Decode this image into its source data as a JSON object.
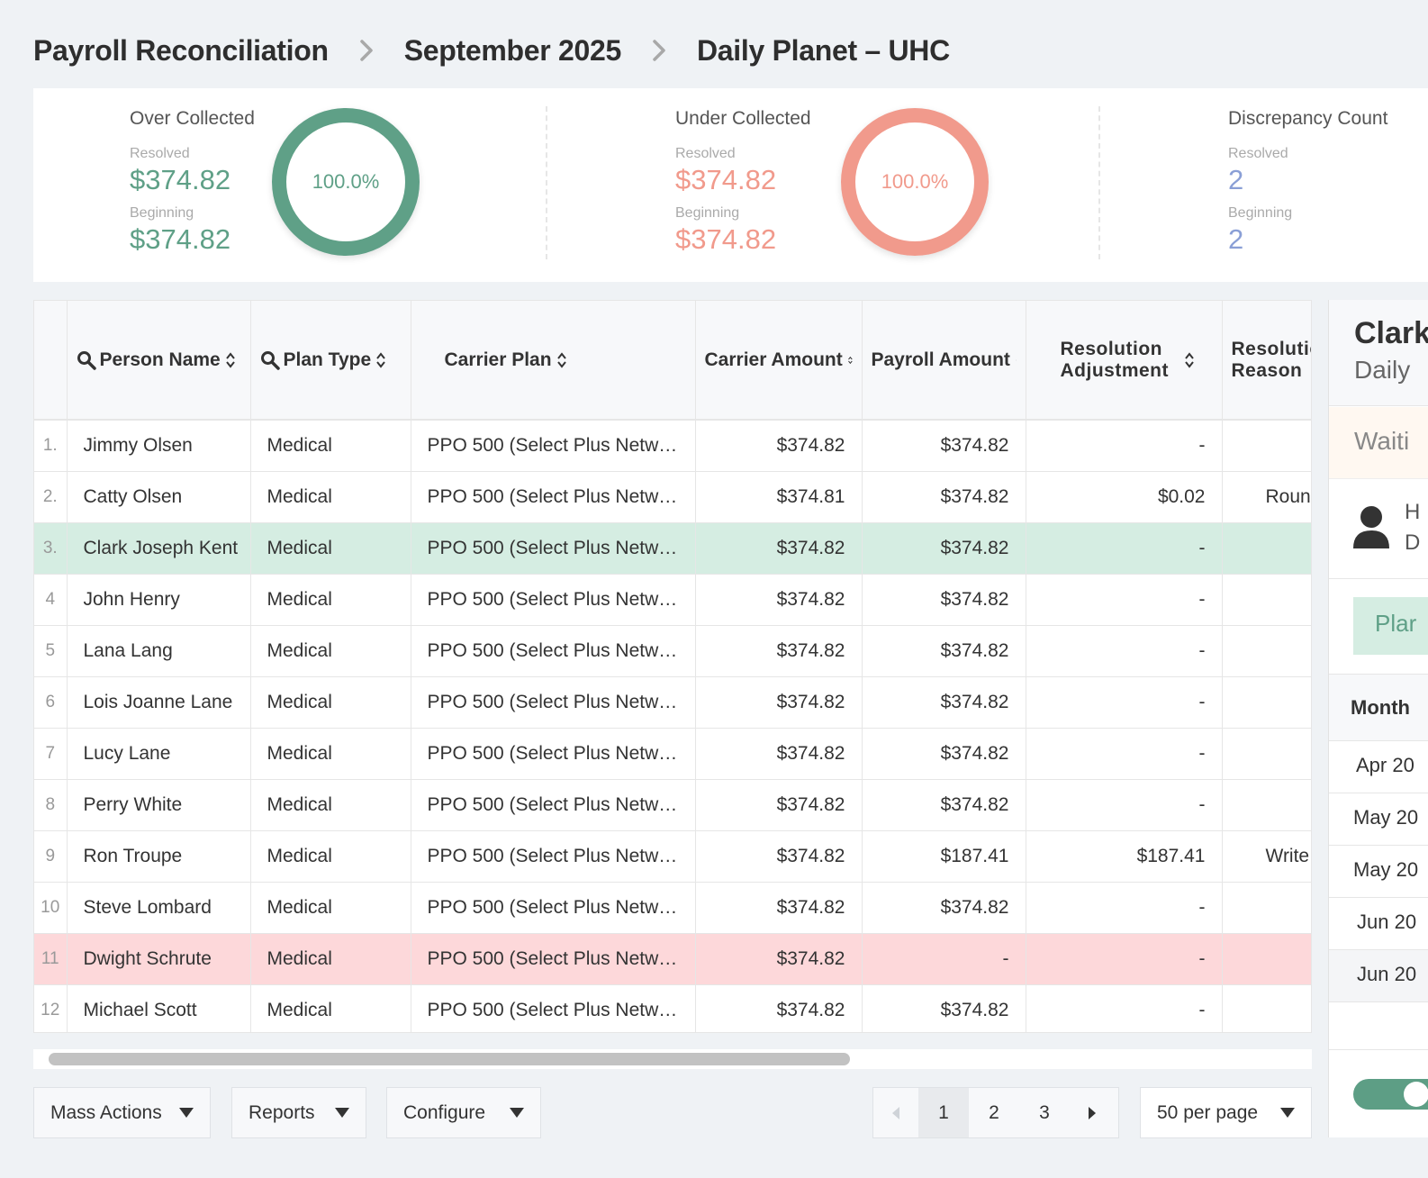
{
  "breadcrumb": [
    "Payroll Reconciliation",
    "September 2025",
    "Daily Planet – UHC"
  ],
  "summary": {
    "over": {
      "title": "Over Collected",
      "resolved_label": "Resolved",
      "resolved": "$374.82",
      "beginning_label": "Beginning",
      "beginning": "$374.82",
      "percent": "100.0%",
      "color": "#5fa087"
    },
    "under": {
      "title": "Under Collected",
      "resolved_label": "Resolved",
      "resolved": "$374.82",
      "beginning_label": "Beginning",
      "beginning": "$374.82",
      "percent": "100.0%",
      "color": "#f19a8c"
    },
    "discrepancy": {
      "title": "Discrepancy Count",
      "resolved_label": "Resolved",
      "resolved": "2",
      "beginning_label": "Beginning",
      "beginning": "2",
      "color": "#8a9fd6"
    }
  },
  "table": {
    "columns": [
      "Person Name",
      "Plan Type",
      "Carrier Plan",
      "Carrier Amount",
      "Payroll Amount",
      "Resolution Adjustment",
      "Resolution Reason"
    ],
    "rows": [
      {
        "idx": "1.",
        "name": "Jimmy Olsen",
        "plan_type": "Medical",
        "carrier_plan": "PPO 500 (Select Plus Netwo...",
        "carrier_amount": "$374.82",
        "payroll_amount": "$374.82",
        "adjustment": "-",
        "reason": "",
        "highlight": ""
      },
      {
        "idx": "2.",
        "name": "Catty Olsen",
        "plan_type": "Medical",
        "carrier_plan": "PPO 500 (Select Plus Netwo...",
        "carrier_amount": "$374.81",
        "payroll_amount": "$374.82",
        "adjustment": "$0.02",
        "reason": "Roun",
        "highlight": ""
      },
      {
        "idx": "3.",
        "name": "Clark Joseph Kent",
        "plan_type": "Medical",
        "carrier_plan": "PPO 500 (Select Plus Netwo...",
        "carrier_amount": "$374.82",
        "payroll_amount": "$374.82",
        "adjustment": "-",
        "reason": "",
        "highlight": "green"
      },
      {
        "idx": "4",
        "name": "John Henry",
        "plan_type": "Medical",
        "carrier_plan": "PPO 500 (Select Plus Netwo...",
        "carrier_amount": "$374.82",
        "payroll_amount": "$374.82",
        "adjustment": "-",
        "reason": "",
        "highlight": ""
      },
      {
        "idx": "5",
        "name": "Lana Lang",
        "plan_type": "Medical",
        "carrier_plan": "PPO 500 (Select Plus Netwo...",
        "carrier_amount": "$374.82",
        "payroll_amount": "$374.82",
        "adjustment": "-",
        "reason": "",
        "highlight": ""
      },
      {
        "idx": "6",
        "name": "Lois Joanne Lane",
        "plan_type": "Medical",
        "carrier_plan": "PPO 500 (Select Plus Netwo...",
        "carrier_amount": "$374.82",
        "payroll_amount": "$374.82",
        "adjustment": "-",
        "reason": "",
        "highlight": ""
      },
      {
        "idx": "7",
        "name": "Lucy Lane",
        "plan_type": "Medical",
        "carrier_plan": "PPO 500 (Select Plus Netwo...",
        "carrier_amount": "$374.82",
        "payroll_amount": "$374.82",
        "adjustment": "-",
        "reason": "",
        "highlight": ""
      },
      {
        "idx": "8",
        "name": "Perry White",
        "plan_type": "Medical",
        "carrier_plan": "PPO 500 (Select Plus Netwo...",
        "carrier_amount": "$374.82",
        "payroll_amount": "$374.82",
        "adjustment": "-",
        "reason": "",
        "highlight": ""
      },
      {
        "idx": "9",
        "name": "Ron Troupe",
        "plan_type": "Medical",
        "carrier_plan": "PPO 500 (Select Plus Netwo...",
        "carrier_amount": "$374.82",
        "payroll_amount": "$187.41",
        "adjustment": "$187.41",
        "reason": "Write",
        "highlight": ""
      },
      {
        "idx": "10",
        "name": "Steve Lombard",
        "plan_type": "Medical",
        "carrier_plan": "PPO 500 (Select Plus Netwo...",
        "carrier_amount": "$374.82",
        "payroll_amount": "$374.82",
        "adjustment": "-",
        "reason": "",
        "highlight": ""
      },
      {
        "idx": "11",
        "name": "Dwight Schrute",
        "plan_type": "Medical",
        "carrier_plan": "PPO 500 (Select Plus Netwo...",
        "carrier_amount": "$374.82",
        "payroll_amount": "-",
        "adjustment": "-",
        "reason": "",
        "highlight": "red"
      },
      {
        "idx": "12",
        "name": "Michael Scott",
        "plan_type": "Medical",
        "carrier_plan": "PPO 500 (Select Plus Netwo...",
        "carrier_amount": "$374.82",
        "payroll_amount": "$374.82",
        "adjustment": "-",
        "reason": "",
        "highlight": ""
      }
    ]
  },
  "footer": {
    "mass_actions": "Mass Actions",
    "reports": "Reports",
    "configure": "Configure",
    "pages": [
      "1",
      "2",
      "3"
    ],
    "current_page": "1",
    "per_page": "50 per page"
  },
  "side_panel": {
    "name": "Clark",
    "subtitle": "Daily",
    "status": "Waiti",
    "user_line1": "H",
    "user_line2": "D",
    "plan_button": "Plar",
    "month_header": "Month",
    "months": [
      "Apr 20",
      "May 20",
      "May 20",
      "Jun 20",
      "Jun 20"
    ],
    "toggle_on": true
  },
  "icons": [
    "chevron-right-icon",
    "search-icon",
    "sort-icon",
    "caret-down-icon",
    "arrow-left-icon",
    "arrow-right-icon",
    "user-icon"
  ],
  "colors": {
    "green": "#5fa087",
    "salmon": "#f19a8c",
    "blue": "#8a9fd6",
    "row_green": "#d5ede2",
    "row_red": "#fdd8da"
  }
}
